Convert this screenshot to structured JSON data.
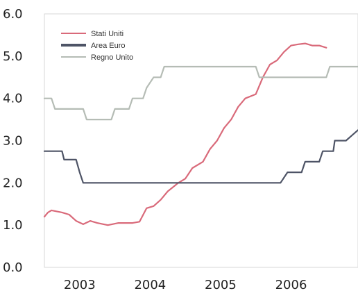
{
  "chart_data": {
    "type": "line",
    "title": "",
    "xlabel": "",
    "ylabel": "",
    "ylim": [
      0,
      6
    ],
    "yticks": [
      "0.0",
      "1.0",
      "2.0",
      "3.0",
      "4.0",
      "5.0",
      "6.0"
    ],
    "xlim": [
      2002.5,
      2006.95
    ],
    "xticks": [
      "2003",
      "2004",
      "2005",
      "2006"
    ],
    "grid": false,
    "legend_position": "top-left",
    "series": [
      {
        "name": "Stati Uniti",
        "color": "#d96a7a",
        "points": [
          [
            2002.5,
            1.2
          ],
          [
            2002.55,
            1.3
          ],
          [
            2002.6,
            1.35
          ],
          [
            2002.75,
            1.3
          ],
          [
            2002.85,
            1.25
          ],
          [
            2002.95,
            1.1
          ],
          [
            2003.05,
            1.02
          ],
          [
            2003.15,
            1.1
          ],
          [
            2003.25,
            1.05
          ],
          [
            2003.4,
            1.0
          ],
          [
            2003.55,
            1.05
          ],
          [
            2003.75,
            1.05
          ],
          [
            2003.85,
            1.08
          ],
          [
            2003.95,
            1.4
          ],
          [
            2004.05,
            1.45
          ],
          [
            2004.15,
            1.6
          ],
          [
            2004.25,
            1.8
          ],
          [
            2004.4,
            2.0
          ],
          [
            2004.5,
            2.1
          ],
          [
            2004.6,
            2.35
          ],
          [
            2004.75,
            2.5
          ],
          [
            2004.85,
            2.8
          ],
          [
            2004.95,
            3.0
          ],
          [
            2005.05,
            3.3
          ],
          [
            2005.15,
            3.5
          ],
          [
            2005.25,
            3.8
          ],
          [
            2005.35,
            4.0
          ],
          [
            2005.5,
            4.1
          ],
          [
            2005.6,
            4.5
          ],
          [
            2005.7,
            4.8
          ],
          [
            2005.8,
            4.9
          ],
          [
            2005.9,
            5.1
          ],
          [
            2006.0,
            5.25
          ],
          [
            2006.1,
            5.28
          ],
          [
            2006.2,
            5.3
          ],
          [
            2006.3,
            5.25
          ],
          [
            2006.4,
            5.25
          ],
          [
            2006.5,
            5.2
          ]
        ]
      },
      {
        "name": "Area Euro",
        "color": "#4e5466",
        "points": [
          [
            2002.5,
            2.75
          ],
          [
            2002.75,
            2.75
          ],
          [
            2002.78,
            2.55
          ],
          [
            2002.95,
            2.55
          ],
          [
            2003.0,
            2.25
          ],
          [
            2003.05,
            2.0
          ],
          [
            2003.5,
            2.0
          ],
          [
            2004.0,
            2.0
          ],
          [
            2004.5,
            2.0
          ],
          [
            2005.0,
            2.0
          ],
          [
            2005.5,
            2.0
          ],
          [
            2005.85,
            2.0
          ],
          [
            2005.95,
            2.25
          ],
          [
            2006.15,
            2.25
          ],
          [
            2006.2,
            2.5
          ],
          [
            2006.4,
            2.5
          ],
          [
            2006.45,
            2.75
          ],
          [
            2006.6,
            2.75
          ],
          [
            2006.62,
            3.0
          ],
          [
            2006.78,
            3.0
          ],
          [
            2006.95,
            3.25
          ]
        ]
      },
      {
        "name": "Regno Unito",
        "color": "#b5bcb5",
        "points": [
          [
            2002.5,
            4.0
          ],
          [
            2002.6,
            4.0
          ],
          [
            2002.65,
            3.75
          ],
          [
            2003.05,
            3.75
          ],
          [
            2003.1,
            3.5
          ],
          [
            2003.3,
            3.5
          ],
          [
            2003.45,
            3.5
          ],
          [
            2003.5,
            3.75
          ],
          [
            2003.7,
            3.75
          ],
          [
            2003.75,
            4.0
          ],
          [
            2003.9,
            4.0
          ],
          [
            2003.95,
            4.25
          ],
          [
            2004.05,
            4.5
          ],
          [
            2004.15,
            4.5
          ],
          [
            2004.2,
            4.75
          ],
          [
            2004.5,
            4.75
          ],
          [
            2005.0,
            4.75
          ],
          [
            2005.5,
            4.75
          ],
          [
            2005.55,
            4.5
          ],
          [
            2006.0,
            4.5
          ],
          [
            2006.5,
            4.5
          ],
          [
            2006.55,
            4.75
          ],
          [
            2006.95,
            4.75
          ]
        ]
      }
    ]
  }
}
